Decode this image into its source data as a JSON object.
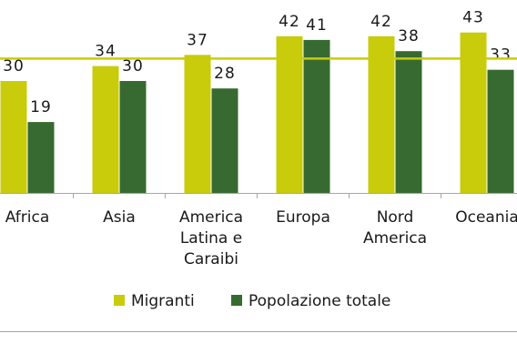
{
  "chart_data": {
    "type": "bar",
    "categories": [
      [
        "Africa"
      ],
      [
        "Asia"
      ],
      [
        "America",
        "Latina e",
        "Caraibi"
      ],
      [
        "Europa"
      ],
      [
        "Nord",
        "America"
      ],
      [
        "Oceania"
      ]
    ],
    "series": [
      {
        "name": "Migranti",
        "values": [
          30,
          34,
          37,
          42,
          42,
          43
        ]
      },
      {
        "name": "Popolazione totale",
        "values": [
          19,
          30,
          28,
          41,
          38,
          33
        ]
      }
    ],
    "reference_line": 36,
    "ylim": [
      0,
      50
    ],
    "grid": false,
    "legend_position": "bottom",
    "colors": {
      "Migranti": "#c8cc0a",
      "Popolazione totale": "#376a30",
      "reference_line": "#c8cc0a",
      "axis": "#a6a6a6"
    }
  }
}
